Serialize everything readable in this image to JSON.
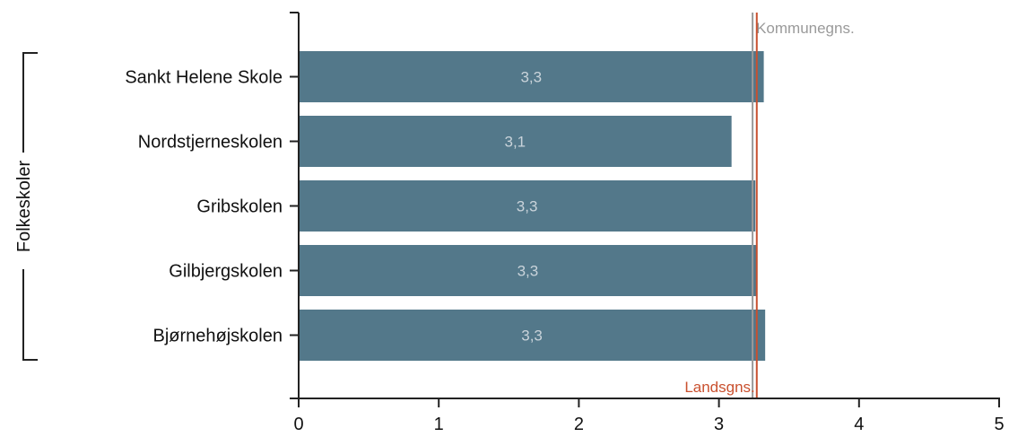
{
  "chart_data": {
    "type": "bar",
    "orientation": "horizontal",
    "group_label": "Folkeskoler",
    "categories": [
      "Sankt Helene Skole",
      "Nordstjerneskolen",
      "Gribskolen",
      "Gilbjergskolen",
      "Bjørnehøjskolen"
    ],
    "values": [
      3.32,
      3.09,
      3.26,
      3.27,
      3.33
    ],
    "value_labels": [
      "3,3",
      "3,1",
      "3,3",
      "3,3",
      "3,3"
    ],
    "xlim": [
      0,
      5
    ],
    "xticks": [
      "0",
      "1",
      "2",
      "3",
      "4",
      "5"
    ],
    "bar_color": "#53788a",
    "reference_lines": [
      {
        "label": "Kommunegns.",
        "value": 3.24,
        "color": "#9a9a9a",
        "label_position": "top"
      },
      {
        "label": "Landsgns.",
        "value": 3.27,
        "color": "#c9502e",
        "label_position": "bottom"
      }
    ]
  }
}
